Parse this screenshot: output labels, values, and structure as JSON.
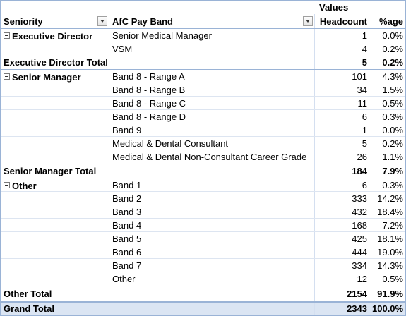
{
  "header": {
    "values_label": "Values",
    "seniority_label": "Seniority",
    "payband_label": "AfC Pay Band",
    "headcount_label": "Headcount",
    "pct_label": "%age"
  },
  "groups": [
    {
      "name": "Executive Director",
      "rows": [
        {
          "band": "Senior Medical Manager",
          "headcount": "1",
          "pct": "0.0%"
        },
        {
          "band": "VSM",
          "headcount": "4",
          "pct": "0.2%"
        }
      ],
      "total_label": "Executive Director Total",
      "total_headcount": "5",
      "total_pct": "0.2%"
    },
    {
      "name": "Senior Manager",
      "rows": [
        {
          "band": "Band 8 - Range A",
          "headcount": "101",
          "pct": "4.3%"
        },
        {
          "band": "Band 8 - Range B",
          "headcount": "34",
          "pct": "1.5%"
        },
        {
          "band": "Band 8 - Range C",
          "headcount": "11",
          "pct": "0.5%"
        },
        {
          "band": "Band 8 - Range D",
          "headcount": "6",
          "pct": "0.3%"
        },
        {
          "band": "Band 9",
          "headcount": "1",
          "pct": "0.0%"
        },
        {
          "band": "Medical & Dental Consultant",
          "headcount": "5",
          "pct": "0.2%"
        },
        {
          "band": "Medical & Dental Non-Consultant Career Grade",
          "headcount": "26",
          "pct": "1.1%"
        }
      ],
      "total_label": "Senior Manager Total",
      "total_headcount": "184",
      "total_pct": "7.9%"
    },
    {
      "name": "Other",
      "rows": [
        {
          "band": "Band 1",
          "headcount": "6",
          "pct": "0.3%"
        },
        {
          "band": "Band 2",
          "headcount": "333",
          "pct": "14.2%"
        },
        {
          "band": "Band 3",
          "headcount": "432",
          "pct": "18.4%"
        },
        {
          "band": "Band 4",
          "headcount": "168",
          "pct": "7.2%"
        },
        {
          "band": "Band 5",
          "headcount": "425",
          "pct": "18.1%"
        },
        {
          "band": "Band 6",
          "headcount": "444",
          "pct": "19.0%"
        },
        {
          "band": "Band 7",
          "headcount": "334",
          "pct": "14.3%"
        },
        {
          "band": "Other",
          "headcount": "12",
          "pct": "0.5%"
        }
      ],
      "total_label": "Other Total",
      "total_headcount": "2154",
      "total_pct": "91.9%"
    }
  ],
  "grand_total": {
    "label": "Grand Total",
    "headcount": "2343",
    "pct": "100.0%"
  }
}
